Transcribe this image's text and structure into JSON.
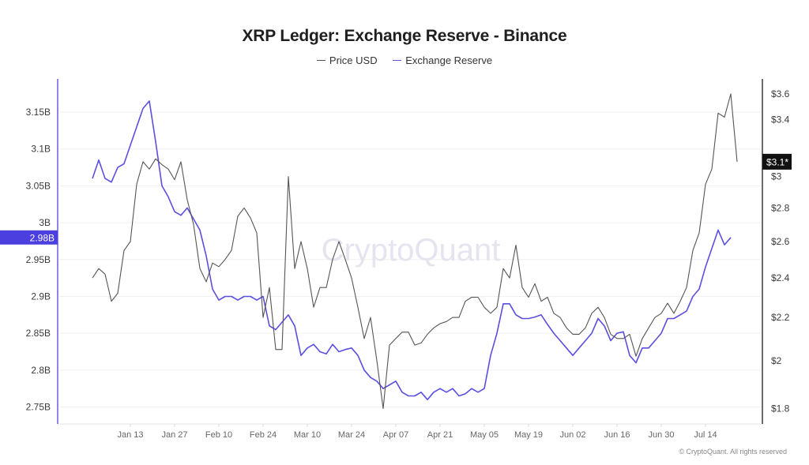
{
  "colors": {
    "price": "#555555",
    "reserve": "#5b4fe0",
    "grid": "#f0f0f0",
    "left_axis": "#6a5fe6",
    "right_axis": "#3a3a3a",
    "badge_left": "#4b3fe0",
    "badge_right": "#111111"
  },
  "footer": {
    "copyright": "© CryptoQuant. All rights reserved"
  },
  "chart_data": {
    "type": "line",
    "title": "XRP Ledger: Exchange Reserve - Binance",
    "watermark": "CryptoQuant",
    "legend": {
      "placement": "top-center",
      "entries": [
        "Price USD",
        "Exchange Reserve"
      ]
    },
    "x_ticks": [
      "Jan 13",
      "Jan 27",
      "Feb 10",
      "Feb 24",
      "Mar 10",
      "Mar 24",
      "Apr 07",
      "Apr 21",
      "May 05",
      "May 19",
      "Jun 02",
      "Jun 16",
      "Jun 30",
      "Jul 14"
    ],
    "x_tick_days": [
      12,
      26,
      40,
      54,
      68,
      82,
      96,
      110,
      124,
      138,
      152,
      166,
      180,
      194
    ],
    "x_range_days": [
      -11,
      212
    ],
    "left_axis": {
      "label": "Exchange Reserve",
      "ticks": [
        "3.15B",
        "3.1B",
        "3.05B",
        "3B",
        "2.95B",
        "2.9B",
        "2.85B",
        "2.8B",
        "2.75B"
      ],
      "tick_values": [
        3.15,
        3.1,
        3.05,
        3.0,
        2.95,
        2.9,
        2.85,
        2.8,
        2.75
      ],
      "ylim": [
        2.727,
        3.195
      ],
      "current_badge": "2.98B"
    },
    "right_axis": {
      "label": "Price USD",
      "scale": "log",
      "ticks": [
        "$3.6",
        "$3.4",
        "$3",
        "$2.8",
        "$2.6",
        "$2.4",
        "$2.2",
        "$2",
        "$1.8"
      ],
      "tick_values": [
        3.6,
        3.4,
        3.0,
        2.8,
        2.6,
        2.4,
        2.2,
        2.0,
        1.8
      ],
      "ylim": [
        1.74,
        3.72
      ],
      "current_badge": "$3.1*"
    },
    "series": [
      {
        "name": "Exchange Reserve",
        "axis": "left",
        "unit": "B",
        "x_days": [
          0,
          2,
          4,
          6,
          8,
          10,
          12,
          14,
          16,
          18,
          20,
          22,
          24,
          26,
          28,
          30,
          32,
          34,
          36,
          38,
          40,
          42,
          44,
          46,
          48,
          50,
          52,
          54,
          56,
          58,
          60,
          62,
          64,
          66,
          68,
          70,
          72,
          74,
          76,
          78,
          80,
          82,
          84,
          86,
          88,
          90,
          92,
          94,
          96,
          98,
          100,
          102,
          104,
          106,
          108,
          110,
          112,
          114,
          116,
          118,
          120,
          122,
          124,
          126,
          128,
          130,
          132,
          134,
          136,
          138,
          140,
          142,
          144,
          146,
          148,
          150,
          152,
          154,
          156,
          158,
          160,
          162,
          164,
          166,
          168,
          170,
          172,
          174,
          176,
          178,
          180,
          182,
          184,
          186,
          188,
          190,
          192,
          194,
          196,
          198,
          200,
          202
        ],
        "values": [
          3.06,
          3.085,
          3.06,
          3.055,
          3.075,
          3.08,
          3.105,
          3.13,
          3.155,
          3.165,
          3.11,
          3.05,
          3.035,
          3.015,
          3.01,
          3.02,
          3.005,
          2.99,
          2.955,
          2.91,
          2.895,
          2.9,
          2.9,
          2.895,
          2.9,
          2.9,
          2.895,
          2.9,
          2.86,
          2.855,
          2.865,
          2.875,
          2.86,
          2.82,
          2.83,
          2.835,
          2.825,
          2.822,
          2.835,
          2.825,
          2.828,
          2.83,
          2.82,
          2.8,
          2.79,
          2.785,
          2.775,
          2.78,
          2.785,
          2.77,
          2.765,
          2.765,
          2.77,
          2.76,
          2.77,
          2.775,
          2.77,
          2.775,
          2.765,
          2.768,
          2.775,
          2.77,
          2.775,
          2.82,
          2.85,
          2.89,
          2.89,
          2.875,
          2.87,
          2.87,
          2.872,
          2.875,
          2.862,
          2.85,
          2.84,
          2.83,
          2.82,
          2.83,
          2.84,
          2.85,
          2.87,
          2.86,
          2.84,
          2.85,
          2.852,
          2.82,
          2.81,
          2.83,
          2.83,
          2.84,
          2.85,
          2.87,
          2.87,
          2.875,
          2.88,
          2.9,
          2.91,
          2.94,
          2.965,
          2.99,
          2.97,
          2.98
        ]
      },
      {
        "name": "Price USD",
        "axis": "right",
        "unit": "$",
        "x_days": [
          0,
          2,
          4,
          6,
          8,
          10,
          12,
          14,
          16,
          18,
          20,
          22,
          24,
          26,
          28,
          30,
          32,
          34,
          36,
          38,
          40,
          42,
          44,
          46,
          48,
          50,
          52,
          54,
          56,
          58,
          60,
          62,
          64,
          66,
          68,
          70,
          72,
          74,
          76,
          78,
          80,
          82,
          84,
          86,
          88,
          90,
          92,
          94,
          96,
          98,
          100,
          102,
          104,
          106,
          108,
          110,
          112,
          114,
          116,
          118,
          120,
          122,
          124,
          126,
          128,
          130,
          132,
          134,
          136,
          138,
          140,
          142,
          144,
          146,
          148,
          150,
          152,
          154,
          156,
          158,
          160,
          162,
          164,
          166,
          168,
          170,
          172,
          174,
          176,
          178,
          180,
          182,
          184,
          186,
          188,
          190,
          192,
          194,
          196,
          198,
          200,
          202,
          204
        ],
        "values": [
          2.4,
          2.45,
          2.42,
          2.28,
          2.32,
          2.55,
          2.6,
          2.95,
          3.1,
          3.05,
          3.12,
          3.08,
          3.05,
          2.98,
          3.1,
          2.85,
          2.7,
          2.45,
          2.38,
          2.48,
          2.46,
          2.5,
          2.55,
          2.75,
          2.8,
          2.74,
          2.65,
          2.2,
          2.35,
          2.05,
          2.05,
          3.0,
          2.45,
          2.6,
          2.45,
          2.25,
          2.35,
          2.35,
          2.5,
          2.6,
          2.5,
          2.4,
          2.25,
          2.1,
          2.2,
          2.0,
          1.8,
          2.07,
          2.1,
          2.13,
          2.13,
          2.07,
          2.08,
          2.12,
          2.15,
          2.17,
          2.18,
          2.2,
          2.2,
          2.28,
          2.3,
          2.3,
          2.25,
          2.22,
          2.25,
          2.45,
          2.4,
          2.58,
          2.35,
          2.3,
          2.37,
          2.28,
          2.3,
          2.22,
          2.2,
          2.15,
          2.12,
          2.12,
          2.15,
          2.22,
          2.25,
          2.2,
          2.12,
          2.1,
          2.1,
          2.12,
          2.02,
          2.1,
          2.15,
          2.2,
          2.22,
          2.27,
          2.22,
          2.28,
          2.35,
          2.55,
          2.65,
          2.95,
          3.05,
          3.45,
          3.42,
          3.6,
          3.1
        ]
      }
    ]
  }
}
